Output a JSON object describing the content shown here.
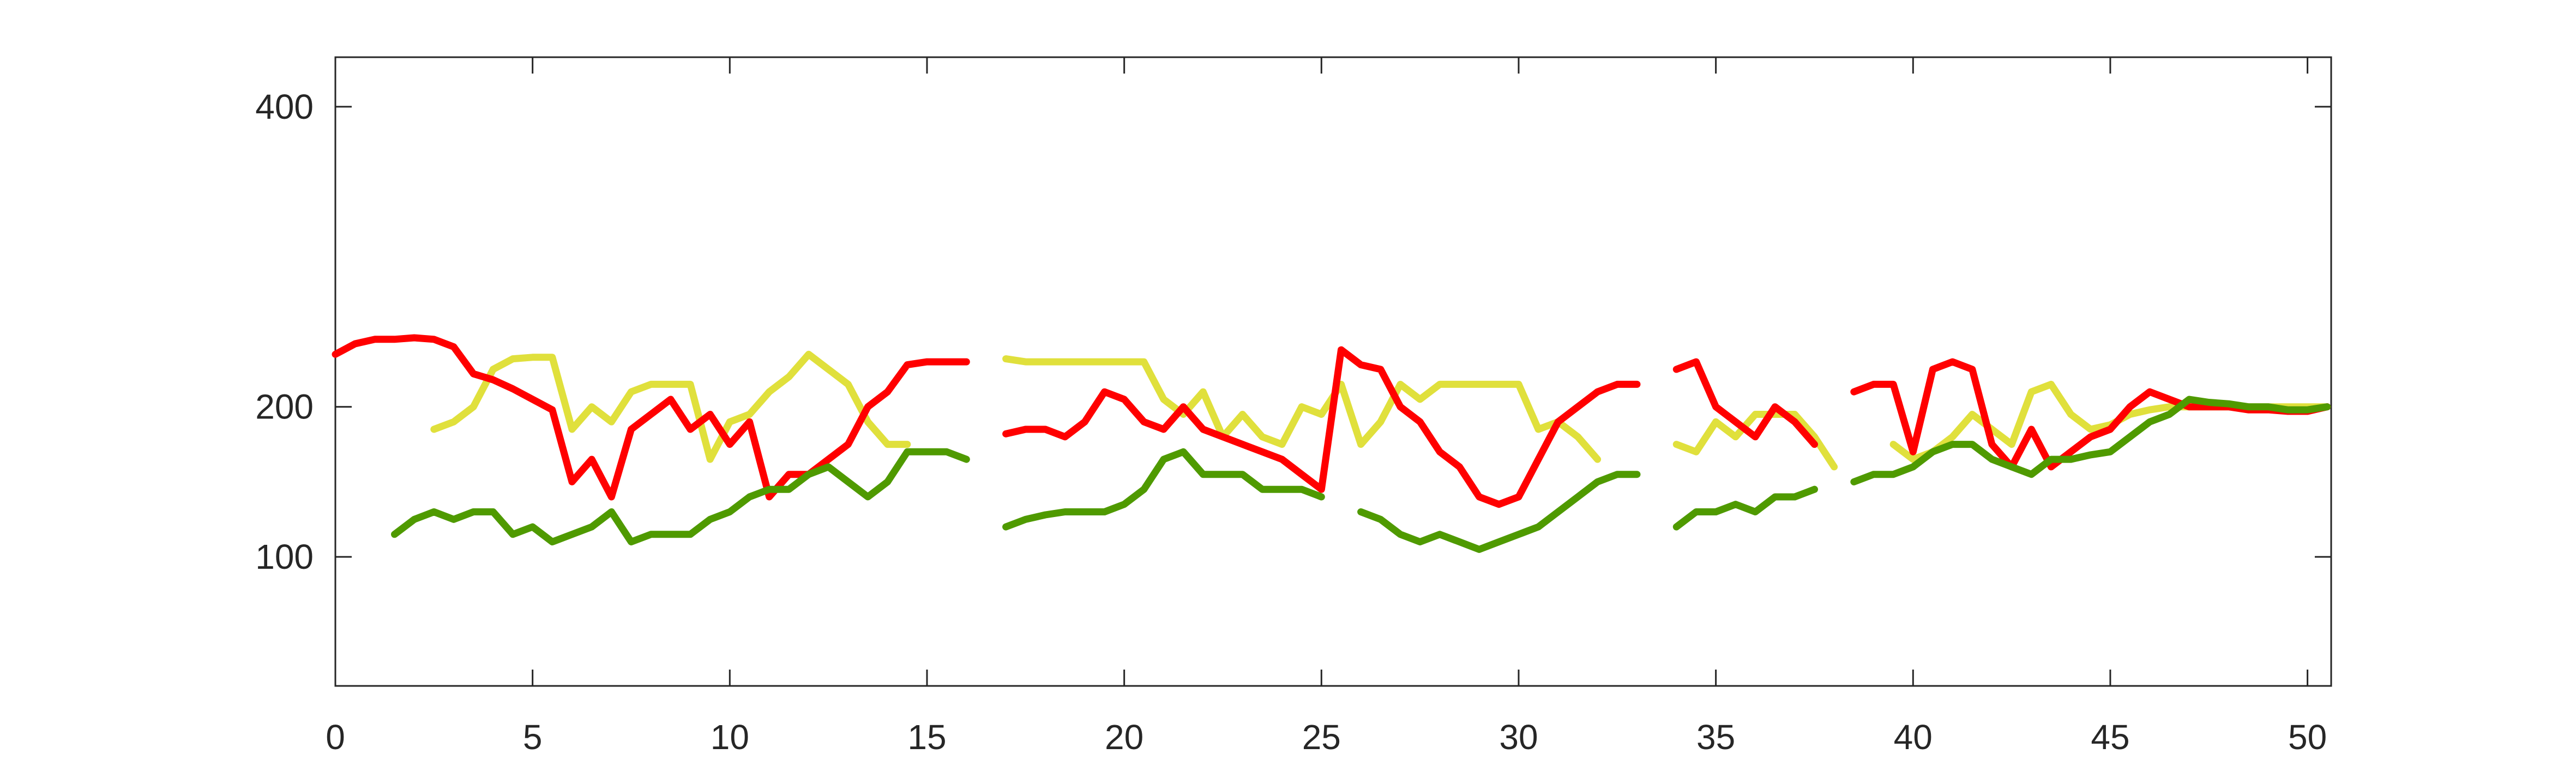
{
  "chart_data": {
    "type": "line",
    "x": [
      0,
      0.5,
      1,
      1.5,
      2,
      2.5,
      3,
      3.5,
      4,
      4.5,
      5,
      5.5,
      6,
      6.5,
      7,
      7.5,
      8,
      8.5,
      9,
      9.5,
      10,
      10.5,
      11,
      11.5,
      12,
      12.5,
      13,
      13.5,
      14,
      14.5,
      15,
      15.5,
      16,
      16.5,
      17,
      17.5,
      18,
      18.5,
      19,
      19.5,
      20,
      20.5,
      21,
      21.5,
      22,
      22.5,
      23,
      23.5,
      24,
      24.5,
      25,
      25.5,
      26,
      26.5,
      27,
      27.5,
      28,
      28.5,
      29,
      29.5,
      30,
      30.5,
      31,
      31.5,
      32,
      32.5,
      33,
      33.5,
      34,
      34.5,
      35,
      35.5,
      36,
      36.5,
      37,
      37.5,
      38,
      38.5,
      39,
      39.5,
      40,
      40.5,
      41,
      41.5,
      42,
      42.5,
      43,
      43.5,
      44,
      44.5,
      45,
      45.5,
      46,
      46.5,
      47,
      47.5,
      48,
      48.5,
      49,
      49.5,
      50,
      50.5
    ],
    "series": [
      {
        "color": "#e0e03c",
        "values": [
          null,
          null,
          null,
          null,
          null,
          185,
          190,
          200,
          225,
          232,
          233,
          233,
          185,
          200,
          190,
          210,
          215,
          215,
          215,
          165,
          190,
          195,
          210,
          220,
          235,
          225,
          215,
          190,
          175,
          175,
          null,
          null,
          null,
          null,
          232,
          230,
          230,
          230,
          230,
          230,
          230,
          230,
          205,
          195,
          210,
          180,
          195,
          180,
          175,
          200,
          195,
          215,
          175,
          190,
          215,
          205,
          215,
          215,
          215,
          215,
          215,
          185,
          190,
          180,
          165,
          null,
          null,
          null,
          175,
          170,
          190,
          180,
          195,
          195,
          195,
          180,
          160,
          null,
          null,
          175,
          165,
          170,
          180,
          195,
          185,
          175,
          210,
          215,
          195,
          185,
          188,
          195,
          198,
          200,
          200,
          200,
          200,
          200,
          200,
          200,
          200,
          200
        ]
      },
      {
        "color": "#ff0000",
        "values": [
          235,
          242,
          245,
          245,
          246,
          245,
          240,
          222,
          218,
          212,
          205,
          198,
          150,
          165,
          140,
          185,
          195,
          205,
          185,
          195,
          175,
          190,
          140,
          155,
          155,
          165,
          175,
          200,
          210,
          228,
          230,
          230,
          230,
          null,
          182,
          185,
          185,
          180,
          190,
          210,
          205,
          190,
          185,
          200,
          185,
          180,
          175,
          170,
          165,
          155,
          145,
          238,
          228,
          225,
          200,
          190,
          170,
          160,
          140,
          135,
          140,
          165,
          190,
          200,
          210,
          215,
          215,
          null,
          225,
          230,
          200,
          190,
          180,
          200,
          190,
          175,
          null,
          210,
          215,
          215,
          170,
          225,
          230,
          225,
          175,
          160,
          185,
          160,
          170,
          180,
          185,
          200,
          210,
          205,
          200,
          200,
          200,
          198,
          198,
          197,
          197,
          200
        ]
      },
      {
        "color": "#4f9a00",
        "values": [
          null,
          null,
          null,
          115,
          125,
          130,
          125,
          130,
          130,
          115,
          120,
          110,
          115,
          120,
          130,
          110,
          115,
          115,
          115,
          125,
          130,
          140,
          145,
          145,
          155,
          160,
          150,
          140,
          150,
          170,
          170,
          170,
          165,
          null,
          120,
          125,
          128,
          130,
          130,
          130,
          135,
          145,
          165,
          170,
          155,
          155,
          155,
          145,
          145,
          145,
          140,
          null,
          130,
          125,
          115,
          110,
          115,
          110,
          105,
          110,
          115,
          120,
          130,
          140,
          150,
          155,
          155,
          null,
          120,
          130,
          130,
          135,
          130,
          140,
          140,
          145,
          null,
          150,
          155,
          155,
          160,
          170,
          175,
          175,
          165,
          160,
          155,
          165,
          165,
          168,
          170,
          180,
          190,
          195,
          205,
          203,
          202,
          200,
          200,
          198,
          198,
          200
        ]
      }
    ],
    "xlim": [
      0,
      50.6
    ],
    "ylim": [
      14,
      433
    ],
    "xticks": [
      0,
      5,
      10,
      15,
      20,
      25,
      30,
      35,
      40,
      45,
      50
    ],
    "yticks": [
      100,
      200,
      400
    ]
  }
}
